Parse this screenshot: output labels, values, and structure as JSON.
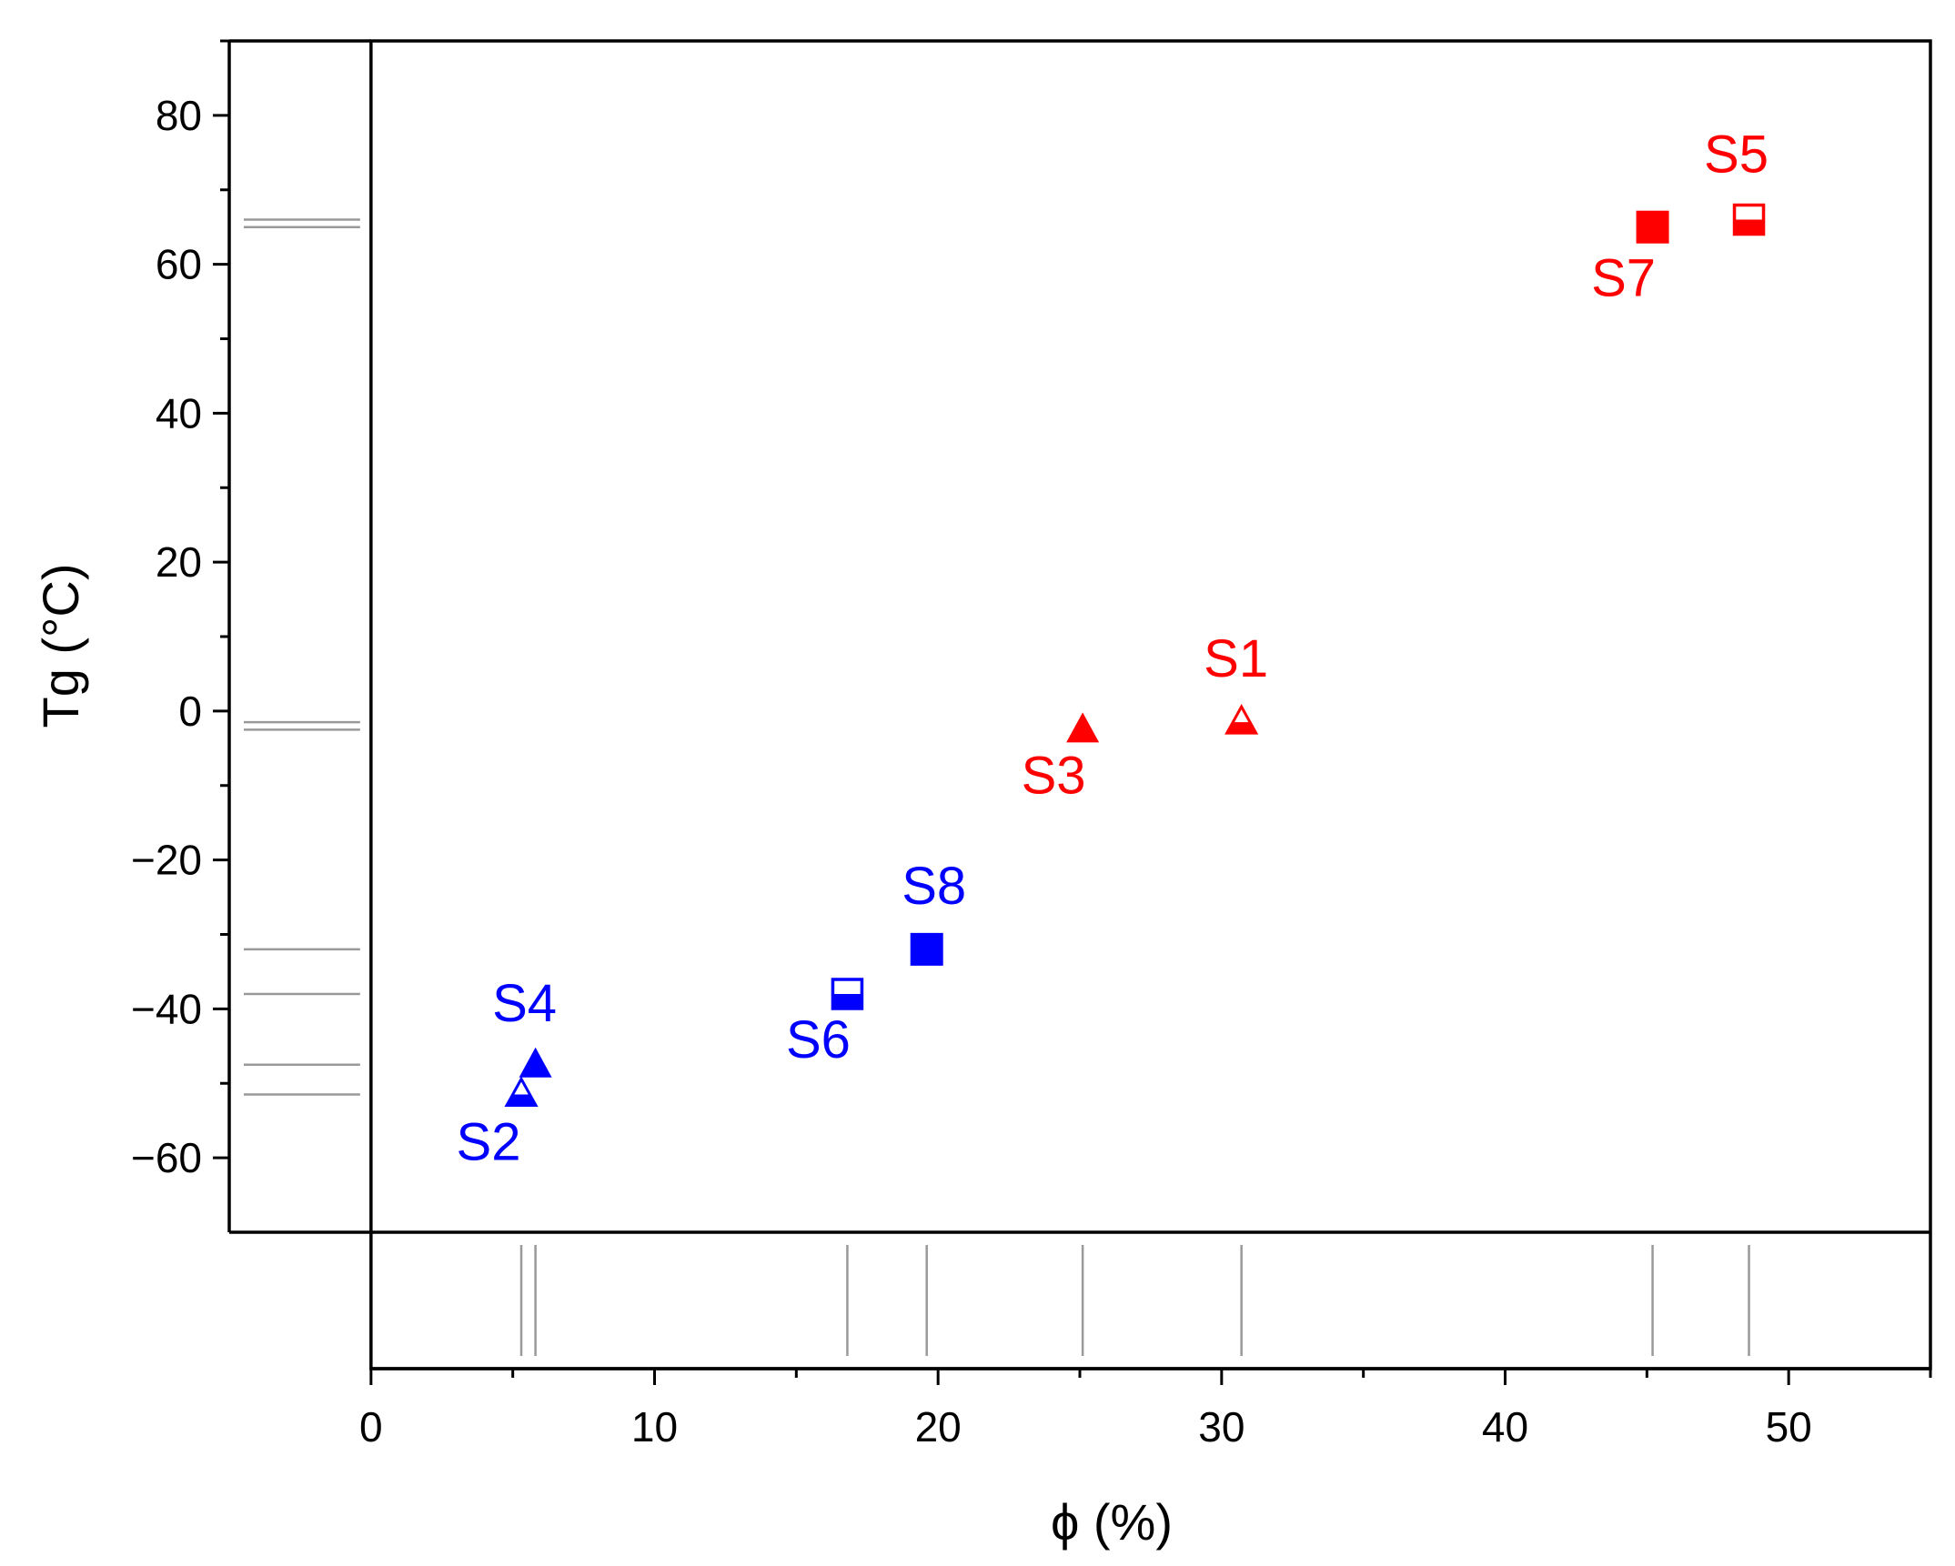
{
  "chart_data": {
    "type": "scatter",
    "title": "",
    "xlabel": "ϕ (%)",
    "ylabel": "Tg (°C)",
    "xlim": [
      -5,
      55
    ],
    "ylim": [
      -70,
      90
    ],
    "xticks": [
      0,
      10,
      20,
      30,
      40,
      50
    ],
    "xminor": [
      5,
      15,
      25,
      35,
      45,
      55
    ],
    "yticks": [
      -60,
      -40,
      -20,
      0,
      20,
      40,
      60,
      80
    ],
    "yminor": [
      -50,
      -30,
      -10,
      10,
      30,
      50,
      70,
      90
    ],
    "grid": false,
    "legend": "none",
    "marginal_rugs": true,
    "colors": {
      "red": "#ff0000",
      "blue": "#0000ff",
      "rug": "#999999",
      "axis": "#000000"
    },
    "points": [
      {
        "label": "S1",
        "x": 30.7,
        "y": -1.5,
        "marker": "triangle-half",
        "color": "red"
      },
      {
        "label": "S2",
        "x": 5.3,
        "y": -51.5,
        "marker": "triangle-half",
        "color": "blue"
      },
      {
        "label": "S3",
        "x": 25.1,
        "y": -2.5,
        "marker": "triangle-filled",
        "color": "red"
      },
      {
        "label": "S4",
        "x": 5.8,
        "y": -47.5,
        "marker": "triangle-filled",
        "color": "blue"
      },
      {
        "label": "S5",
        "x": 48.6,
        "y": 66.0,
        "marker": "square-half",
        "color": "red"
      },
      {
        "label": "S6",
        "x": 16.8,
        "y": -38.0,
        "marker": "square-half",
        "color": "blue"
      },
      {
        "label": "S7",
        "x": 45.2,
        "y": 65.0,
        "marker": "square-filled",
        "color": "red"
      },
      {
        "label": "S8",
        "x": 19.6,
        "y": -32.0,
        "marker": "square-filled",
        "color": "blue"
      }
    ]
  }
}
